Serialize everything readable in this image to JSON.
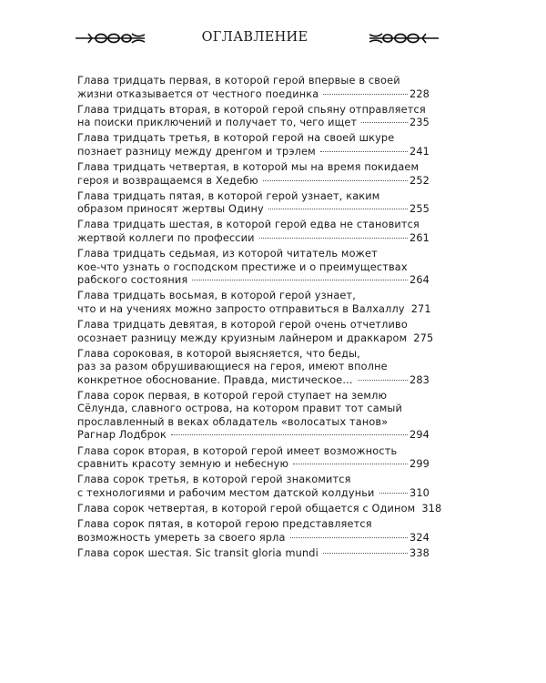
{
  "title": "ОГЛАВЛЕНИЕ",
  "entries": [
    {
      "lines": [
        "Глава тридцать первая, в которой герой впервые в своей"
      ],
      "last": "жизни отказывается от честного поединка",
      "page": "228"
    },
    {
      "lines": [
        "Глава тридцать вторая, в которой герой спьяну отправляется"
      ],
      "last": "на поиски приключений и получает то, чего ищет",
      "page": "235"
    },
    {
      "lines": [
        "Глава тридцать третья, в которой герой на своей шкуре"
      ],
      "last": "познает разницу между дренгом и трэлем",
      "page": "241"
    },
    {
      "lines": [
        "Глава тридцать четвертая, в которой мы на время покидаем"
      ],
      "last": "героя и возвращаемся в Хедебю",
      "page": "252"
    },
    {
      "lines": [
        "Глава тридцать пятая, в которой герой узнает, каким"
      ],
      "last": "образом приносят жертвы Одину",
      "page": "255"
    },
    {
      "lines": [
        "Глава тридцать шестая, в которой герой едва не становится"
      ],
      "last": "жертвой коллеги по профессии",
      "page": "261"
    },
    {
      "lines": [
        "Глава тридцать седьмая, из которой читатель может",
        "кое-что узнать о господском престиже и о преимуществах"
      ],
      "last": "рабского состояния",
      "page": "264"
    },
    {
      "lines": [
        "Глава тридцать восьмая, в которой герой узнает,"
      ],
      "last": "что и на учениях можно запросто отправиться в Валхаллу",
      "page": "271"
    },
    {
      "lines": [
        "Глава тридцать девятая, в которой герой очень отчетливо"
      ],
      "last": "осознает разницу между круизным лайнером и драккаром",
      "page": "275"
    },
    {
      "lines": [
        "Глава сороковая, в которой выясняется, что беды,",
        "раз за разом обрушивающиеся на героя, имеют вполне"
      ],
      "last": "конкретное обоснование. Правда, мистическое...",
      "page": "283"
    },
    {
      "lines": [
        "Глава сорок первая, в которой герой ступает на землю",
        "Сёлунда, славного острова, на котором правит тот самый",
        "прославленный в веках обладатель «волосатых танов»"
      ],
      "last": "Рагнар Лодброк",
      "page": "294"
    },
    {
      "lines": [
        "Глава сорок вторая, в которой герой имеет возможность"
      ],
      "last": "сравнить красоту земную и небесную",
      "page": "299"
    },
    {
      "lines": [
        "Глава сорок третья, в которой герой знакомится"
      ],
      "last": "с технологиями и рабочим местом датской колдуньи",
      "page": "310"
    },
    {
      "lines": [],
      "last": "Глава сорок четвертая, в которой герой общается с Одином",
      "page": "318"
    },
    {
      "lines": [
        "Глава сорок пятая, в которой герою представляется"
      ],
      "last": "возможность умереть за своего ярла",
      "page": "324"
    },
    {
      "lines": [],
      "last": "Глава сорок шестая. Sic transit gloria mundi",
      "page": "338"
    }
  ]
}
